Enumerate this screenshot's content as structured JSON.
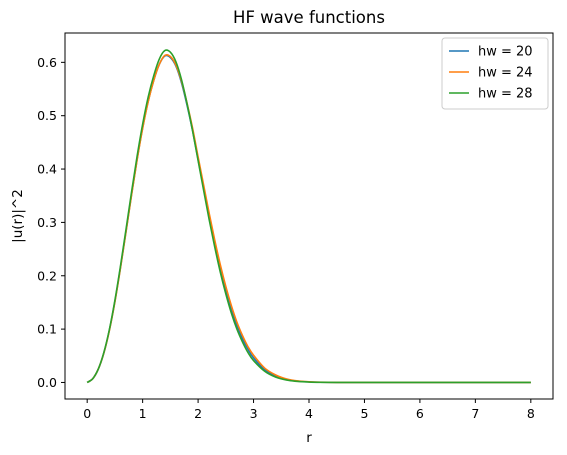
{
  "chart_data": {
    "type": "line",
    "title": "HF wave functions",
    "xlabel": "r",
    "ylabel": "|u(r)|^2",
    "xlim": [
      -0.4,
      8.4
    ],
    "ylim": [
      -0.031,
      0.655
    ],
    "xticks": [
      0,
      1,
      2,
      3,
      4,
      5,
      6,
      7,
      8
    ],
    "xtick_labels": [
      "0",
      "1",
      "2",
      "3",
      "4",
      "5",
      "6",
      "7",
      "8"
    ],
    "yticks": [
      0.0,
      0.1,
      0.2,
      0.3,
      0.4,
      0.5,
      0.6
    ],
    "ytick_labels": [
      "0.0",
      "0.1",
      "0.2",
      "0.3",
      "0.4",
      "0.5",
      "0.6"
    ],
    "grid": false,
    "legend_position": "top-right",
    "x": [
      0,
      0.1,
      0.2,
      0.3,
      0.4,
      0.5,
      0.6,
      0.7,
      0.8,
      0.9,
      1.0,
      1.1,
      1.2,
      1.3,
      1.4,
      1.5,
      1.6,
      1.7,
      1.8,
      1.9,
      2.0,
      2.1,
      2.2,
      2.3,
      2.4,
      2.5,
      2.6,
      2.7,
      2.8,
      2.9,
      3.0,
      3.2,
      3.4,
      3.6,
      3.8,
      4.0,
      4.2,
      4.5,
      5.0,
      6.0,
      7.0,
      8.0
    ],
    "series": [
      {
        "name": "hw = 20",
        "color": "#1f77b4",
        "values": [
          0,
          0.007,
          0.025,
          0.055,
          0.098,
          0.152,
          0.215,
          0.283,
          0.352,
          0.418,
          0.477,
          0.527,
          0.566,
          0.596,
          0.612,
          0.609,
          0.593,
          0.562,
          0.52,
          0.472,
          0.418,
          0.364,
          0.311,
          0.26,
          0.214,
          0.173,
          0.137,
          0.107,
          0.082,
          0.062,
          0.046,
          0.024,
          0.012,
          0.0055,
          0.0024,
          0.0011,
          0.0004,
          0.0001,
          0,
          0,
          0,
          0
        ]
      },
      {
        "name": "hw = 24",
        "color": "#ff7f0e",
        "values": [
          0,
          0.007,
          0.025,
          0.055,
          0.097,
          0.151,
          0.214,
          0.282,
          0.351,
          0.417,
          0.476,
          0.526,
          0.566,
          0.596,
          0.613,
          0.611,
          0.595,
          0.565,
          0.524,
          0.477,
          0.423,
          0.37,
          0.317,
          0.267,
          0.221,
          0.18,
          0.144,
          0.113,
          0.088,
          0.067,
          0.051,
          0.027,
          0.014,
          0.0065,
          0.0029,
          0.0013,
          0.0005,
          0.0001,
          0,
          0,
          0,
          0
        ]
      },
      {
        "name": "hw = 28",
        "color": "#2ca02c",
        "values": [
          0,
          0.007,
          0.025,
          0.056,
          0.099,
          0.154,
          0.218,
          0.287,
          0.357,
          0.424,
          0.484,
          0.535,
          0.575,
          0.606,
          0.622,
          0.619,
          0.601,
          0.568,
          0.523,
          0.472,
          0.416,
          0.36,
          0.305,
          0.254,
          0.207,
          0.166,
          0.13,
          0.1,
          0.076,
          0.056,
          0.041,
          0.021,
          0.01,
          0.0045,
          0.0019,
          0.0008,
          0.0003,
          0.0001,
          0,
          0,
          0,
          0
        ]
      }
    ]
  }
}
